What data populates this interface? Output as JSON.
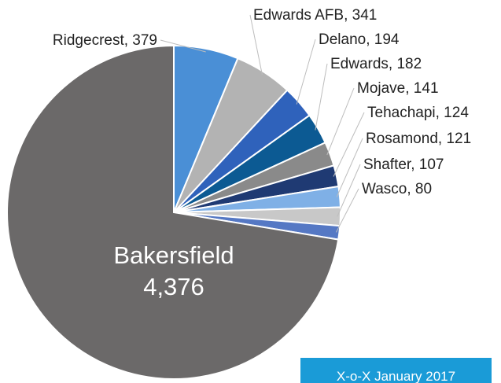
{
  "chart_data": {
    "type": "pie",
    "title": "",
    "slices": [
      {
        "label": "Bakersfield",
        "value": 4376,
        "value_label": "4,376",
        "color": "#6b6969"
      },
      {
        "label": "Ridgecrest",
        "value": 379,
        "value_label": "379",
        "color": "#4a8fd6"
      },
      {
        "label": "Edwards AFB",
        "value": 341,
        "value_label": "341",
        "color": "#b3b3b3"
      },
      {
        "label": "Delano",
        "value": 194,
        "value_label": "194",
        "color": "#2f62bb"
      },
      {
        "label": "Edwards",
        "value": 182,
        "value_label": "182",
        "color": "#0c5a93"
      },
      {
        "label": "Mojave",
        "value": 141,
        "value_label": "141",
        "color": "#8a8a8a"
      },
      {
        "label": "Tehachapi",
        "value": 124,
        "value_label": "124",
        "color": "#1f3a73"
      },
      {
        "label": "Rosamond",
        "value": 121,
        "value_label": "121",
        "color": "#7fb0e6"
      },
      {
        "label": "Shafter",
        "value": 107,
        "value_label": "107",
        "color": "#c8c8c8"
      },
      {
        "label": "Wasco",
        "value": 80,
        "value_label": "80",
        "color": "#5578c4"
      }
    ]
  },
  "banner": {
    "text": "X-o-X January 2017",
    "color": "#1a9bd7"
  }
}
